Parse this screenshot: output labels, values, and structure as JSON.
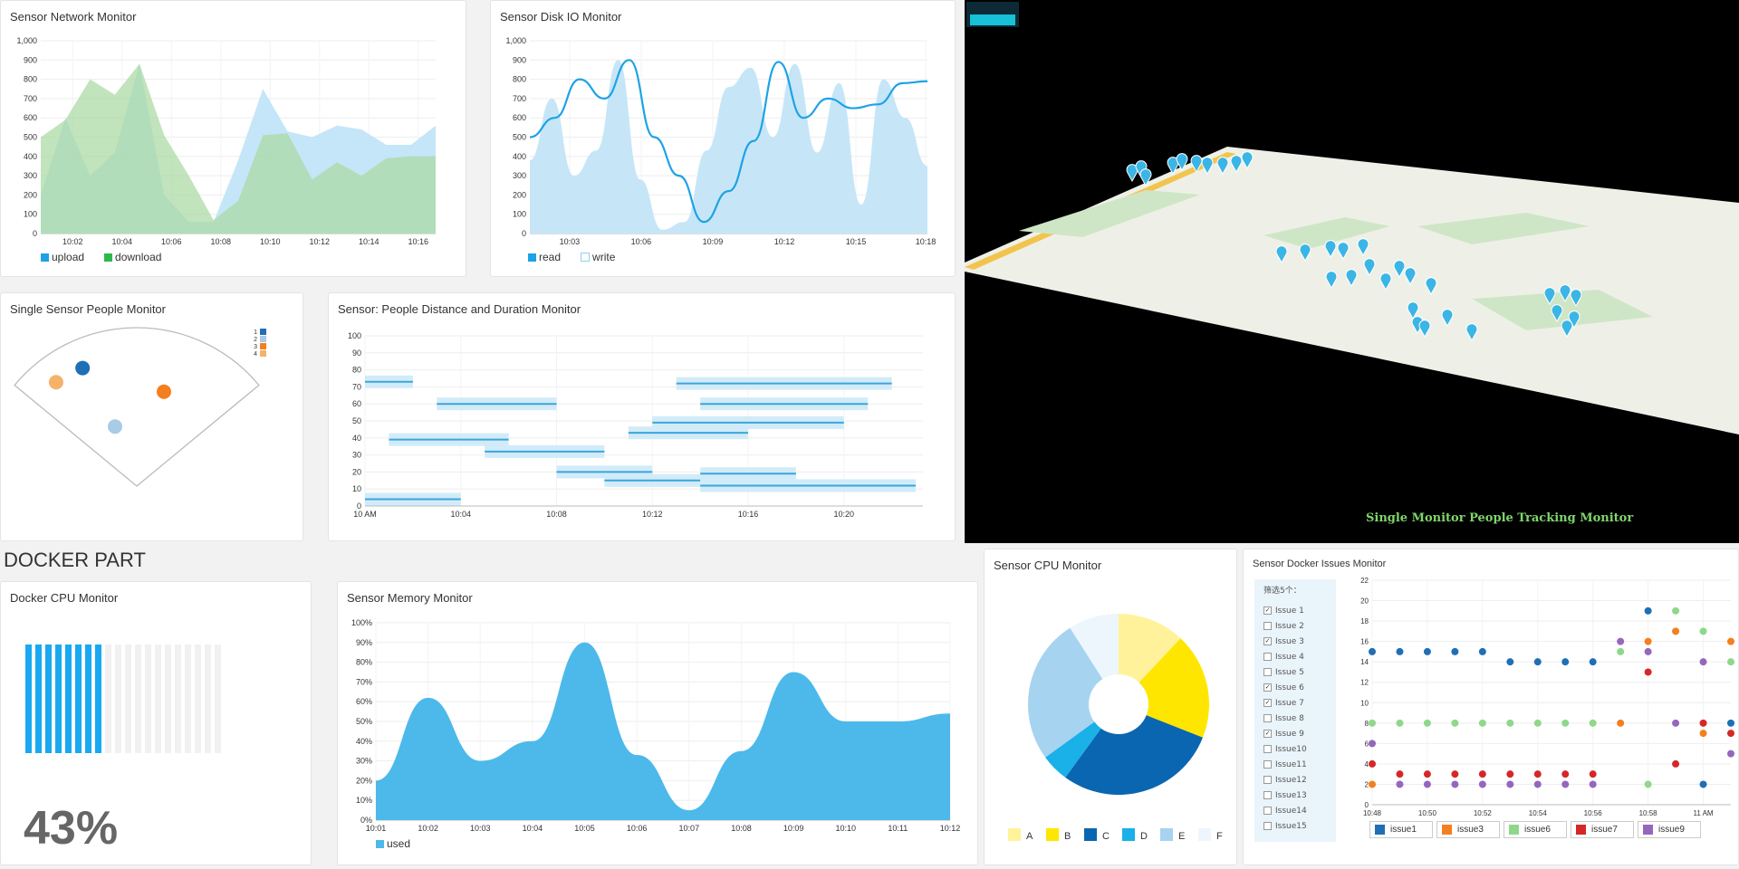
{
  "network": {
    "title": "Sensor Network Monitor",
    "legend": [
      {
        "label": "upload",
        "color": "#1ea2e6"
      },
      {
        "label": "download",
        "color": "#2db84b"
      }
    ],
    "chart_data": {
      "type": "area",
      "title": "Sensor Network Monitor",
      "yticks": [
        "1,000",
        "900",
        "800",
        "700",
        "600",
        "500",
        "400",
        "300",
        "200",
        "100",
        "0"
      ],
      "xticks": [
        "10:02",
        "10:04",
        "10:06",
        "10:08",
        "10:10",
        "10:12",
        "10:14",
        "10:16"
      ],
      "ylim": [
        0,
        1000
      ],
      "series": [
        {
          "name": "upload",
          "values": [
            200,
            600,
            300,
            420,
            880,
            200,
            60,
            60,
            380,
            750,
            530,
            500,
            560,
            540,
            460,
            460,
            560
          ]
        },
        {
          "name": "download",
          "values": [
            500,
            590,
            800,
            720,
            880,
            510,
            300,
            70,
            170,
            510,
            520,
            280,
            370,
            300,
            390,
            400,
            400
          ]
        }
      ]
    }
  },
  "disk": {
    "title": "Sensor Disk IO Monitor",
    "legend": [
      {
        "label": "read",
        "color": "#1ea2e6"
      },
      {
        "label": "write",
        "color": "#8fd0f2"
      }
    ],
    "chart_data": {
      "type": "line",
      "title": "Sensor Disk IO Monitor",
      "yticks": [
        "1,000",
        "900",
        "800",
        "700",
        "600",
        "500",
        "400",
        "300",
        "200",
        "100",
        "0"
      ],
      "xticks": [
        "10:03",
        "10:06",
        "10:09",
        "10:12",
        "10:15",
        "10:18"
      ],
      "ylim": [
        0,
        1000
      ],
      "series": [
        {
          "name": "read",
          "values": [
            500,
            600,
            800,
            700,
            900,
            500,
            300,
            60,
            220,
            480,
            890,
            600,
            700,
            650,
            670,
            780,
            790
          ]
        },
        {
          "name": "write",
          "values": [
            380,
            700,
            300,
            430,
            900,
            280,
            20,
            60,
            430,
            760,
            860,
            500,
            880,
            420,
            780,
            150,
            800,
            600,
            350
          ]
        }
      ]
    }
  },
  "people": {
    "title": "Single Sensor People Monitor",
    "legend": [
      {
        "label": "1",
        "color": "#1f6fb4"
      },
      {
        "label": "2",
        "color": "#a8cbe6"
      },
      {
        "label": "3",
        "color": "#f47f1f"
      },
      {
        "label": "4",
        "color": "#f4b26a"
      }
    ],
    "points": [
      {
        "label": "1",
        "color": "#1f6fb4",
        "a": -0.43,
        "r": 0.82
      },
      {
        "label": "2",
        "color": "#a8cbe6",
        "a": -0.35,
        "r": 0.4
      },
      {
        "label": "3",
        "color": "#f47f1f",
        "a": 0.28,
        "r": 0.62
      },
      {
        "label": "4",
        "color": "#f4b26a",
        "a": -0.66,
        "r": 0.83
      }
    ]
  },
  "distance": {
    "title": "Sensor: People Distance and Duration Monitor",
    "chart_data": {
      "type": "bar",
      "title": "Sensor: People Distance and Duration Monitor",
      "yticks": [
        "100",
        "90",
        "80",
        "70",
        "60",
        "50",
        "40",
        "30",
        "20",
        "10",
        "0"
      ],
      "xticks": [
        "10 AM",
        "10:04",
        "10:08",
        "10:12",
        "10:16",
        "10:20"
      ],
      "ylim": [
        0,
        100
      ],
      "segments": [
        {
          "y": 73,
          "x0": 0,
          "x1": 2
        },
        {
          "y": 60,
          "x0": 3,
          "x1": 8
        },
        {
          "y": 72,
          "x0": 13,
          "x1": 22
        },
        {
          "y": 60,
          "x0": 14,
          "x1": 21
        },
        {
          "y": 49,
          "x0": 12,
          "x1": 20
        },
        {
          "y": 43,
          "x0": 11,
          "x1": 16
        },
        {
          "y": 39,
          "x0": 1,
          "x1": 6
        },
        {
          "y": 32,
          "x0": 5,
          "x1": 10
        },
        {
          "y": 20,
          "x0": 8,
          "x1": 12
        },
        {
          "y": 19,
          "x0": 14,
          "x1": 18
        },
        {
          "y": 15,
          "x0": 10,
          "x1": 14
        },
        {
          "y": 12,
          "x0": 14,
          "x1": 23
        },
        {
          "y": 4,
          "x0": 0,
          "x1": 4
        }
      ]
    }
  },
  "map": {
    "caption": "Single Monitor People Tracking Monitor"
  },
  "section_title": "DOCKER PART",
  "docker_cpu": {
    "title": "Docker CPU Monitor",
    "percent": "43%",
    "filled": 8,
    "total": 20,
    "level": 0.43
  },
  "memory": {
    "title": "Sensor Memory Monitor",
    "legend": [
      {
        "label": "used",
        "color": "#4cb9ea"
      }
    ],
    "chart_data": {
      "type": "area",
      "title": "Sensor Memory Monitor",
      "yticks": [
        "100%",
        "90%",
        "80%",
        "70%",
        "60%",
        "50%",
        "40%",
        "30%",
        "20%",
        "10%",
        "0%"
      ],
      "xticks": [
        "10:01",
        "10:02",
        "10:03",
        "10:04",
        "10:05",
        "10:06",
        "10:07",
        "10:08",
        "10:09",
        "10:10",
        "10:11",
        "10:12"
      ],
      "ylim": [
        0,
        100
      ],
      "series": [
        {
          "name": "used",
          "values": [
            20,
            62,
            30,
            40,
            90,
            33,
            5,
            35,
            75,
            50,
            50,
            54
          ]
        }
      ]
    }
  },
  "cpu_pie": {
    "title": "Sensor CPU Monitor",
    "chart_data": {
      "type": "pie",
      "title": "Sensor CPU Monitor",
      "series": [
        {
          "label": "A",
          "value": 12,
          "color": "#fff29a"
        },
        {
          "label": "B",
          "value": 19,
          "color": "#ffe600"
        },
        {
          "label": "C",
          "value": 29,
          "color": "#0a66b0"
        },
        {
          "label": "D",
          "value": 5,
          "color": "#1ab0e8"
        },
        {
          "label": "E",
          "value": 26,
          "color": "#a6d3f0"
        },
        {
          "label": "F",
          "value": 9,
          "color": "#eef6fd"
        }
      ]
    }
  },
  "issues": {
    "title": "Sensor Docker Issues Monitor",
    "filter_title": "筛选5个：",
    "items": [
      {
        "label": "Issue 1",
        "checked": true
      },
      {
        "label": "Issue 2",
        "checked": false
      },
      {
        "label": "Issue 3",
        "checked": true
      },
      {
        "label": "Issue 4",
        "checked": false
      },
      {
        "label": "Issue 5",
        "checked": false
      },
      {
        "label": "Issue 6",
        "checked": true
      },
      {
        "label": "Issue 7",
        "checked": true
      },
      {
        "label": "Issue 8",
        "checked": false
      },
      {
        "label": "Issue 9",
        "checked": true
      },
      {
        "label": "Issue10",
        "checked": false
      },
      {
        "label": "Issue11",
        "checked": false
      },
      {
        "label": "Issue12",
        "checked": false
      },
      {
        "label": "Issue13",
        "checked": false
      },
      {
        "label": "Issue14",
        "checked": false
      },
      {
        "label": "Issue15",
        "checked": false
      }
    ],
    "legend": [
      {
        "label": "issue1",
        "color": "#1f6fb4"
      },
      {
        "label": "issue3",
        "color": "#f47f1f"
      },
      {
        "label": "issue6",
        "color": "#8fd88a"
      },
      {
        "label": "issue7",
        "color": "#d62728"
      },
      {
        "label": "issue9",
        "color": "#9467bd"
      }
    ],
    "chart_data": {
      "type": "scatter",
      "title": "Sensor Docker Issues Monitor",
      "yticks": [
        "22",
        "20",
        "18",
        "16",
        "14",
        "12",
        "10",
        "8",
        "6",
        "4",
        "2",
        "0"
      ],
      "xticks": [
        "10:48",
        "10:50",
        "10:52",
        "10:54",
        "10:56",
        "10:58",
        "11 AM"
      ],
      "ylim": [
        0,
        22
      ],
      "series": [
        {
          "name": "issue1",
          "color": "#1f6fb4",
          "points": [
            [
              0,
              15
            ],
            [
              1,
              15
            ],
            [
              2,
              15
            ],
            [
              3,
              15
            ],
            [
              4,
              15
            ],
            [
              5,
              14
            ],
            [
              6,
              14
            ],
            [
              7,
              14
            ],
            [
              8,
              14
            ],
            [
              10,
              19
            ],
            [
              12,
              2
            ],
            [
              13,
              8
            ]
          ]
        },
        {
          "name": "issue3",
          "color": "#f47f1f",
          "points": [
            [
              0,
              2
            ],
            [
              9,
              8
            ],
            [
              10,
              16
            ],
            [
              11,
              17
            ],
            [
              12,
              7
            ],
            [
              13,
              16
            ]
          ]
        },
        {
          "name": "issue6",
          "color": "#8fd88a",
          "points": [
            [
              0,
              8
            ],
            [
              1,
              8
            ],
            [
              2,
              8
            ],
            [
              3,
              8
            ],
            [
              4,
              8
            ],
            [
              5,
              8
            ],
            [
              6,
              8
            ],
            [
              7,
              8
            ],
            [
              8,
              8
            ],
            [
              9,
              15
            ],
            [
              10,
              2
            ],
            [
              11,
              19
            ],
            [
              12,
              17
            ],
            [
              13,
              14
            ]
          ]
        },
        {
          "name": "issue7",
          "color": "#d62728",
          "points": [
            [
              0,
              4
            ],
            [
              1,
              3
            ],
            [
              2,
              3
            ],
            [
              3,
              3
            ],
            [
              4,
              3
            ],
            [
              5,
              3
            ],
            [
              6,
              3
            ],
            [
              7,
              3
            ],
            [
              8,
              3
            ],
            [
              10,
              13
            ],
            [
              11,
              4
            ],
            [
              12,
              8
            ],
            [
              13,
              7
            ]
          ]
        },
        {
          "name": "issue9",
          "color": "#9467bd",
          "points": [
            [
              0,
              6
            ],
            [
              1,
              2
            ],
            [
              2,
              2
            ],
            [
              3,
              2
            ],
            [
              4,
              2
            ],
            [
              5,
              2
            ],
            [
              6,
              2
            ],
            [
              7,
              2
            ],
            [
              8,
              2
            ],
            [
              9,
              16
            ],
            [
              10,
              15
            ],
            [
              11,
              8
            ],
            [
              12,
              14
            ],
            [
              13,
              5
            ]
          ]
        }
      ]
    }
  }
}
